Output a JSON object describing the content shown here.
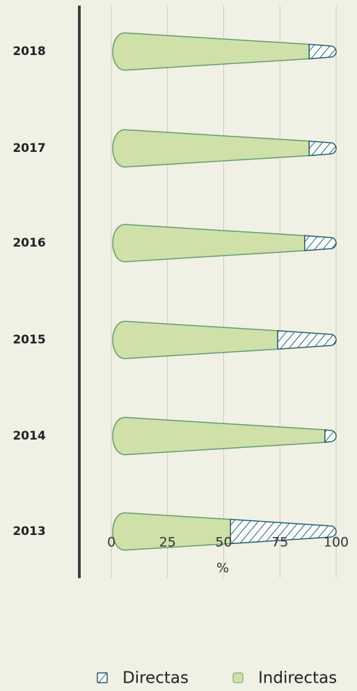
{
  "chart_data": {
    "type": "stacked_barh",
    "categories": [
      "2018",
      "2017",
      "2016",
      "2015",
      "2014",
      "2013"
    ],
    "series": [
      {
        "name": "Directas",
        "color": "#1f5f6b",
        "values": [
          12,
          12,
          14,
          26,
          5,
          47
        ]
      },
      {
        "name": "Indirectas",
        "color": "#cfe0a8",
        "values": [
          88,
          88,
          86,
          74,
          95,
          53
        ]
      }
    ],
    "xlim": [
      0,
      100
    ],
    "xticks": [
      0,
      25,
      50,
      75,
      100
    ],
    "xlabel": "%",
    "grid": true,
    "legend": "bottom"
  }
}
